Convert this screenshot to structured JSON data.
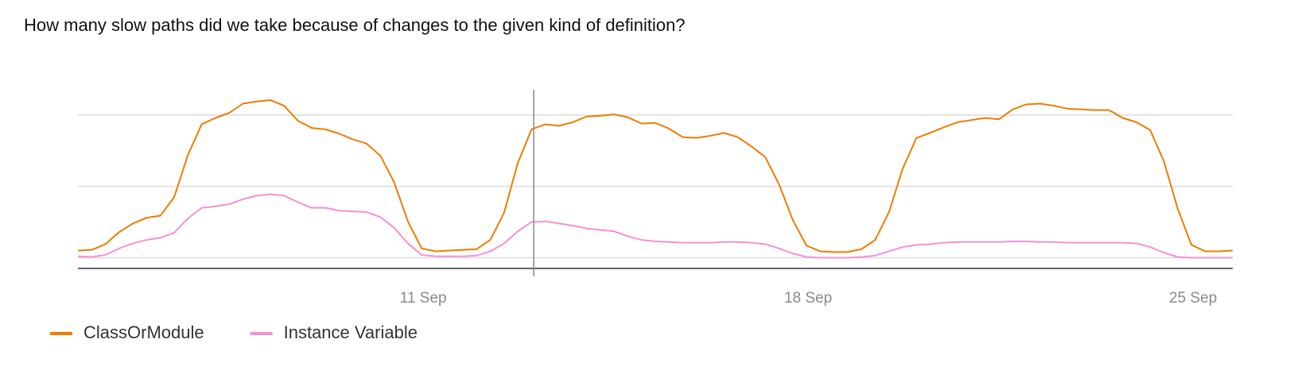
{
  "chart_data": {
    "type": "line",
    "title": "How many slow paths did we take because of changes to the given kind of definition?",
    "x": [
      4.72,
      4.97,
      5.22,
      5.47,
      5.72,
      5.97,
      6.22,
      6.47,
      6.72,
      6.97,
      7.22,
      7.47,
      7.72,
      7.97,
      8.22,
      8.47,
      8.72,
      8.97,
      9.22,
      9.47,
      9.72,
      9.97,
      10.22,
      10.47,
      10.72,
      10.97,
      11.22,
      11.47,
      11.72,
      11.97,
      12.22,
      12.47,
      12.72,
      12.97,
      13.22,
      13.47,
      13.72,
      13.97,
      14.22,
      14.47,
      14.72,
      14.97,
      15.22,
      15.47,
      15.72,
      15.97,
      16.22,
      16.47,
      16.72,
      16.97,
      17.22,
      17.47,
      17.72,
      17.97,
      18.22,
      18.47,
      18.72,
      18.97,
      19.22,
      19.47,
      19.72,
      19.97,
      20.22,
      20.47,
      20.72,
      20.97,
      21.22,
      21.47,
      21.72,
      21.97,
      22.22,
      22.47,
      22.72,
      22.97,
      23.22,
      23.47,
      23.72,
      23.97,
      24.22,
      24.47,
      24.72,
      24.97,
      25.22,
      25.47,
      25.72
    ],
    "series": [
      {
        "name": "ClassOrModule",
        "color": "#ef7c00",
        "values": [
          0.1,
          0.11,
          0.19,
          0.36,
          0.48,
          0.56,
          0.59,
          0.85,
          1.44,
          1.87,
          1.96,
          2.03,
          2.16,
          2.19,
          2.21,
          2.13,
          1.92,
          1.82,
          1.8,
          1.74,
          1.66,
          1.6,
          1.43,
          1.06,
          0.51,
          0.13,
          0.09,
          0.1,
          0.11,
          0.12,
          0.25,
          0.63,
          1.33,
          1.8,
          1.87,
          1.85,
          1.9,
          1.98,
          1.99,
          2.01,
          1.97,
          1.88,
          1.89,
          1.81,
          1.69,
          1.68,
          1.71,
          1.75,
          1.69,
          1.56,
          1.41,
          1.03,
          0.53,
          0.17,
          0.09,
          0.08,
          0.08,
          0.12,
          0.25,
          0.64,
          1.25,
          1.68,
          1.75,
          1.83,
          1.9,
          1.93,
          1.96,
          1.94,
          2.08,
          2.15,
          2.16,
          2.13,
          2.09,
          2.08,
          2.07,
          2.07,
          1.96,
          1.9,
          1.79,
          1.35,
          0.69,
          0.18,
          0.09,
          0.09,
          0.1
        ]
      },
      {
        "name": "Instance Variable",
        "color": "#f78fd6",
        "values": [
          0.02,
          0.01,
          0.04,
          0.13,
          0.2,
          0.25,
          0.28,
          0.35,
          0.55,
          0.7,
          0.72,
          0.75,
          0.82,
          0.87,
          0.89,
          0.87,
          0.78,
          0.7,
          0.7,
          0.66,
          0.65,
          0.64,
          0.57,
          0.42,
          0.2,
          0.04,
          0.02,
          0.02,
          0.02,
          0.03,
          0.09,
          0.2,
          0.37,
          0.5,
          0.51,
          0.48,
          0.45,
          0.41,
          0.39,
          0.37,
          0.3,
          0.25,
          0.23,
          0.22,
          0.21,
          0.21,
          0.21,
          0.22,
          0.22,
          0.21,
          0.19,
          0.13,
          0.06,
          0.01,
          0.0,
          0.0,
          0.0,
          0.01,
          0.03,
          0.09,
          0.15,
          0.18,
          0.19,
          0.21,
          0.22,
          0.22,
          0.22,
          0.22,
          0.23,
          0.23,
          0.22,
          0.22,
          0.21,
          0.21,
          0.21,
          0.21,
          0.21,
          0.2,
          0.15,
          0.07,
          0.01,
          0.0,
          0.0,
          0.0,
          0.0
        ]
      }
    ],
    "xlim": [
      4.72,
      25.72
    ],
    "xticks": [
      {
        "value": 11,
        "label": "11 Sep"
      },
      {
        "value": 18,
        "label": "18 Sep"
      },
      {
        "value": 25,
        "label": "25 Sep"
      }
    ],
    "ylim": [
      -0.15,
      2.5
    ],
    "ygrid": [
      0,
      1,
      2
    ],
    "cursor_x": 13.01,
    "legend": "bottom-left"
  }
}
